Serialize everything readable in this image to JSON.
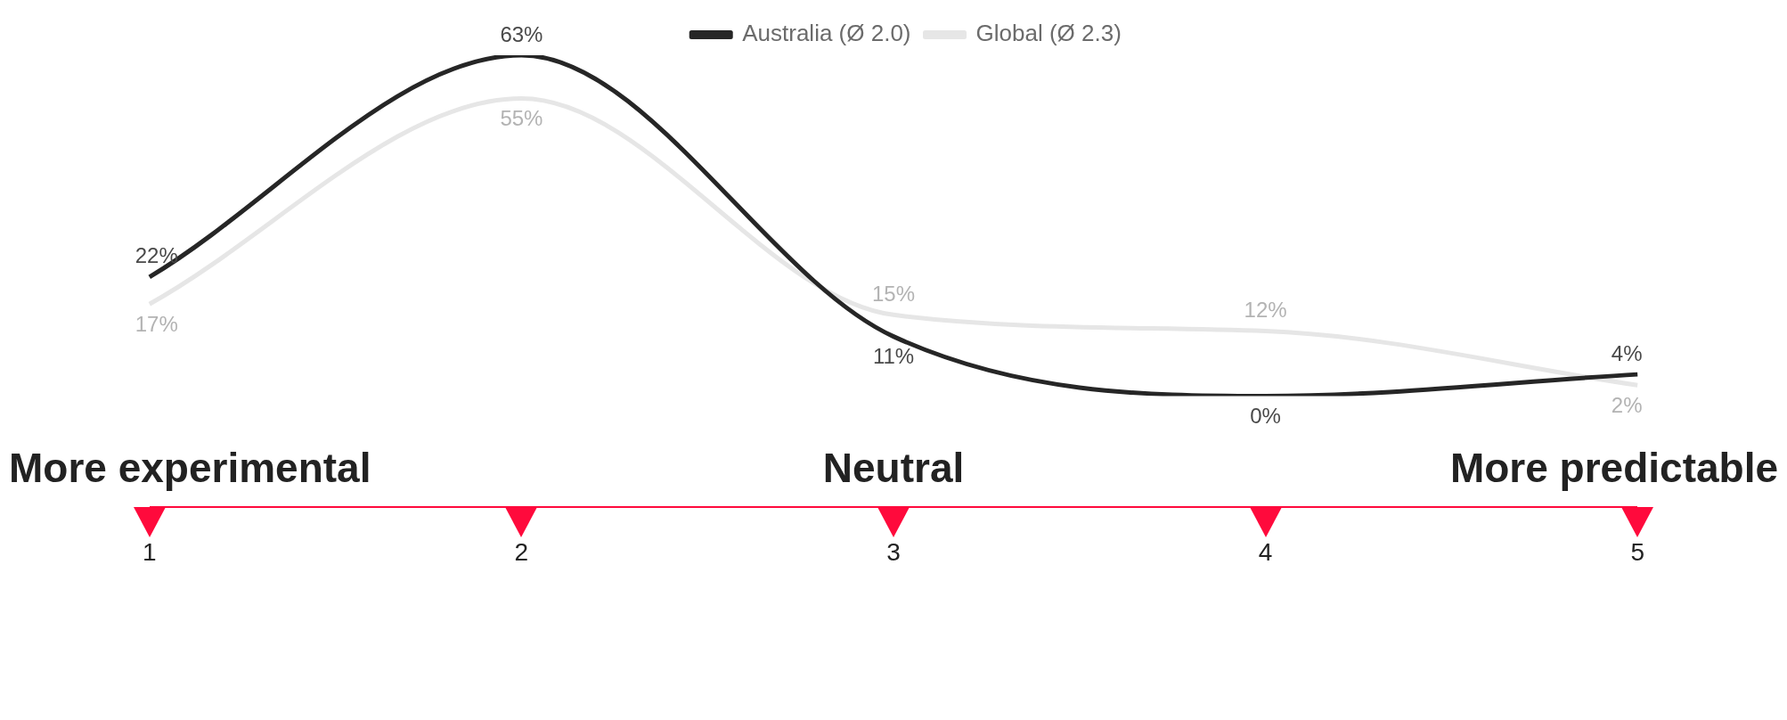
{
  "chart_data": {
    "type": "line",
    "categories": [
      "1",
      "2",
      "3",
      "4",
      "5"
    ],
    "series": [
      {
        "name": "Australia (Ø 2.0)",
        "color": "#262626",
        "values": [
          22,
          63,
          11,
          0,
          4
        ],
        "value_labels": [
          "22%",
          "63%",
          "11%",
          "0%",
          "4%"
        ]
      },
      {
        "name": "Global (Ø 2.3)",
        "color": "#e6e6e6",
        "values": [
          17,
          55,
          15,
          12,
          2
        ],
        "value_labels": [
          "17%",
          "55%",
          "15%",
          "12%",
          "2%"
        ]
      }
    ],
    "tick_labels": "x",
    "legend": "top",
    "grid": false,
    "marker": "none",
    "annotations": [
      "More experimental",
      "Neutral",
      "More predictable"
    ]
  }
}
